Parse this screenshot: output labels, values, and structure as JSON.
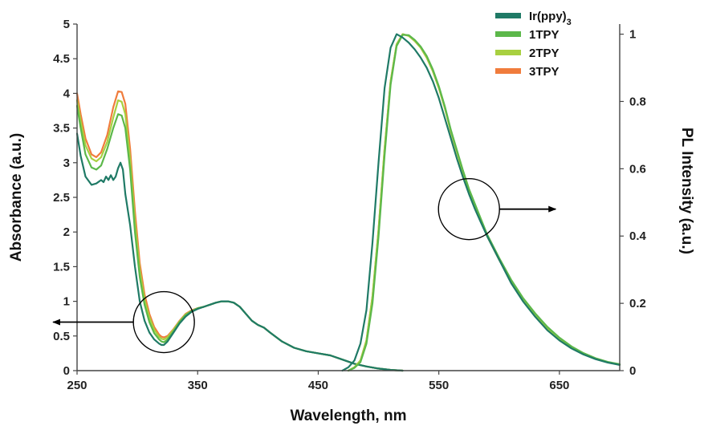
{
  "chart_data": {
    "type": "line",
    "xlabel": "Wavelength, nm",
    "ylabel_left": "Absorbance (a.u.)",
    "ylabel_right": "PL Intensity (a.u.)",
    "xlim": [
      250,
      700
    ],
    "ylim_left": [
      0,
      5
    ],
    "ylim_right": [
      0,
      1.03
    ],
    "x_ticks": [
      250,
      350,
      450,
      550,
      650
    ],
    "y_left_ticks": [
      0,
      0.5,
      1,
      1.5,
      2,
      2.5,
      3,
      3.5,
      4,
      4.5,
      5
    ],
    "y_right_ticks": [
      0,
      0.2,
      0.4,
      0.6,
      0.8,
      1
    ],
    "grid": false,
    "legend_position": "top-right",
    "legend": [
      {
        "base": "Ir(ppy)",
        "sub": "3",
        "color": "#1f7a66"
      },
      {
        "base": "1TPY",
        "sub": "",
        "color": "#5cb84a"
      },
      {
        "base": "2TPY",
        "sub": "",
        "color": "#a8d040"
      },
      {
        "base": "3TPY",
        "sub": "",
        "color": "#f07c3c"
      }
    ],
    "annotations": [
      {
        "type": "circle-arrow",
        "direction": "left",
        "center": [
          322,
          0.7
        ]
      },
      {
        "type": "circle-arrow",
        "direction": "right",
        "center": [
          575,
          0.48
        ]
      }
    ],
    "series": [
      {
        "axis": "left",
        "color": "#f07c3c",
        "x": [
          250,
          253,
          257,
          262,
          266,
          270,
          275,
          280,
          284,
          287,
          290,
          294,
          298,
          302,
          306,
          310,
          314,
          318,
          320,
          322,
          325,
          330,
          335,
          340,
          345,
          350,
          355,
          360,
          365,
          370,
          375,
          380,
          385,
          390,
          395,
          400,
          405,
          410,
          420,
          430,
          440,
          450,
          460,
          470,
          480,
          490,
          500,
          510,
          520
        ],
        "y": [
          4.0,
          3.7,
          3.35,
          3.12,
          3.08,
          3.15,
          3.4,
          3.8,
          4.03,
          4.02,
          3.85,
          3.2,
          2.3,
          1.55,
          1.1,
          0.82,
          0.63,
          0.52,
          0.49,
          0.48,
          0.5,
          0.6,
          0.72,
          0.82,
          0.87,
          0.9,
          0.92,
          0.95,
          0.98,
          1.0,
          1.0,
          0.98,
          0.92,
          0.82,
          0.72,
          0.66,
          0.62,
          0.55,
          0.42,
          0.33,
          0.28,
          0.25,
          0.22,
          0.16,
          0.1,
          0.06,
          0.03,
          0.01,
          0.0
        ]
      },
      {
        "axis": "left",
        "color": "#a8d040",
        "x": [
          250,
          253,
          257,
          262,
          266,
          270,
          275,
          280,
          284,
          287,
          290,
          294,
          298,
          302,
          306,
          310,
          314,
          318,
          320,
          322,
          325,
          330,
          335,
          340,
          345,
          350,
          355,
          360,
          365,
          370,
          375,
          380,
          385,
          390,
          395,
          400,
          405,
          410,
          420,
          430,
          440,
          450,
          460,
          470,
          480,
          490,
          500,
          510,
          520
        ],
        "y": [
          3.9,
          3.6,
          3.25,
          3.06,
          3.02,
          3.08,
          3.3,
          3.65,
          3.9,
          3.88,
          3.7,
          3.05,
          2.15,
          1.45,
          1.02,
          0.77,
          0.59,
          0.49,
          0.46,
          0.45,
          0.48,
          0.59,
          0.71,
          0.81,
          0.86,
          0.9,
          0.92,
          0.95,
          0.98,
          1.0,
          1.0,
          0.98,
          0.92,
          0.82,
          0.72,
          0.66,
          0.62,
          0.55,
          0.42,
          0.33,
          0.28,
          0.25,
          0.22,
          0.16,
          0.1,
          0.06,
          0.03,
          0.01,
          0.0
        ]
      },
      {
        "axis": "left",
        "color": "#5cb84a",
        "x": [
          250,
          253,
          257,
          262,
          266,
          270,
          275,
          280,
          284,
          287,
          290,
          294,
          298,
          302,
          306,
          310,
          314,
          318,
          320,
          322,
          325,
          330,
          335,
          340,
          345,
          350,
          355,
          360,
          365,
          370,
          375,
          380,
          385,
          390,
          395,
          400,
          405,
          410,
          420,
          430,
          440,
          450,
          460,
          470,
          480,
          490,
          500,
          510,
          520
        ],
        "y": [
          3.82,
          3.5,
          3.12,
          2.93,
          2.9,
          2.96,
          3.2,
          3.5,
          3.7,
          3.68,
          3.5,
          2.9,
          2.0,
          1.35,
          0.95,
          0.7,
          0.54,
          0.45,
          0.42,
          0.41,
          0.45,
          0.57,
          0.7,
          0.8,
          0.86,
          0.9,
          0.92,
          0.95,
          0.98,
          1.0,
          1.0,
          0.98,
          0.92,
          0.82,
          0.72,
          0.66,
          0.62,
          0.55,
          0.42,
          0.33,
          0.28,
          0.25,
          0.22,
          0.16,
          0.1,
          0.06,
          0.03,
          0.01,
          0.0
        ]
      },
      {
        "axis": "left",
        "color": "#1f7a66",
        "x": [
          250,
          253,
          257,
          262,
          266,
          270,
          272,
          274,
          276,
          278,
          280,
          282,
          284,
          286,
          288,
          290,
          294,
          298,
          302,
          306,
          310,
          314,
          318,
          320,
          322,
          325,
          330,
          335,
          340,
          345,
          350,
          355,
          360,
          365,
          370,
          375,
          380,
          385,
          390,
          395,
          400,
          405,
          410,
          420,
          430,
          440,
          450,
          460,
          470,
          480,
          490,
          500,
          510,
          520
        ],
        "y": [
          3.42,
          3.1,
          2.8,
          2.68,
          2.7,
          2.75,
          2.72,
          2.8,
          2.75,
          2.82,
          2.75,
          2.8,
          2.92,
          3.0,
          2.9,
          2.55,
          2.1,
          1.5,
          1.0,
          0.72,
          0.55,
          0.45,
          0.39,
          0.37,
          0.37,
          0.42,
          0.55,
          0.68,
          0.78,
          0.85,
          0.89,
          0.92,
          0.95,
          0.98,
          1.0,
          1.0,
          0.98,
          0.92,
          0.82,
          0.72,
          0.66,
          0.62,
          0.55,
          0.42,
          0.33,
          0.28,
          0.25,
          0.22,
          0.16,
          0.1,
          0.06,
          0.03,
          0.01,
          0.0
        ]
      },
      {
        "axis": "right",
        "color": "#f07c3c",
        "x": [
          475,
          480,
          485,
          490,
          495,
          500,
          505,
          510,
          515,
          520,
          525,
          530,
          535,
          540,
          545,
          550,
          555,
          560,
          565,
          570,
          575,
          580,
          585,
          590,
          600,
          610,
          620,
          630,
          640,
          650,
          660,
          670,
          680,
          690,
          700
        ],
        "y": [
          0.0,
          0.01,
          0.03,
          0.09,
          0.22,
          0.42,
          0.66,
          0.86,
          0.97,
          1.0,
          0.995,
          0.98,
          0.96,
          0.93,
          0.89,
          0.84,
          0.78,
          0.71,
          0.65,
          0.59,
          0.535,
          0.49,
          0.445,
          0.4,
          0.33,
          0.265,
          0.21,
          0.165,
          0.125,
          0.095,
          0.07,
          0.05,
          0.035,
          0.025,
          0.018
        ]
      },
      {
        "axis": "right",
        "color": "#a8d040",
        "x": [
          475,
          480,
          485,
          490,
          495,
          500,
          505,
          510,
          515,
          520,
          525,
          530,
          535,
          540,
          545,
          550,
          555,
          560,
          565,
          570,
          575,
          580,
          585,
          590,
          600,
          610,
          620,
          630,
          640,
          650,
          660,
          670,
          680,
          690,
          700
        ],
        "y": [
          0.0,
          0.01,
          0.03,
          0.09,
          0.22,
          0.42,
          0.66,
          0.86,
          0.97,
          1.0,
          0.995,
          0.98,
          0.96,
          0.93,
          0.89,
          0.84,
          0.78,
          0.71,
          0.65,
          0.59,
          0.535,
          0.49,
          0.445,
          0.4,
          0.33,
          0.265,
          0.21,
          0.165,
          0.125,
          0.095,
          0.07,
          0.05,
          0.035,
          0.025,
          0.018
        ]
      },
      {
        "axis": "right",
        "color": "#5cb84a",
        "x": [
          475,
          480,
          485,
          490,
          495,
          500,
          505,
          510,
          515,
          520,
          525,
          530,
          535,
          540,
          545,
          550,
          555,
          560,
          565,
          570,
          575,
          580,
          585,
          590,
          600,
          610,
          620,
          630,
          640,
          650,
          660,
          670,
          680,
          690,
          700
        ],
        "y": [
          0.0,
          0.008,
          0.025,
          0.08,
          0.2,
          0.4,
          0.64,
          0.85,
          0.965,
          0.998,
          0.997,
          0.983,
          0.963,
          0.935,
          0.895,
          0.845,
          0.785,
          0.715,
          0.655,
          0.595,
          0.54,
          0.495,
          0.45,
          0.405,
          0.335,
          0.27,
          0.215,
          0.17,
          0.13,
          0.098,
          0.072,
          0.052,
          0.037,
          0.026,
          0.019
        ]
      },
      {
        "axis": "right",
        "color": "#1f7a66",
        "x": [
          470,
          475,
          480,
          485,
          490,
          495,
          500,
          505,
          510,
          515,
          520,
          525,
          530,
          535,
          540,
          545,
          550,
          555,
          560,
          565,
          570,
          575,
          580,
          585,
          590,
          600,
          610,
          620,
          630,
          640,
          650,
          660,
          670,
          680,
          690,
          700
        ],
        "y": [
          0.0,
          0.01,
          0.03,
          0.08,
          0.18,
          0.38,
          0.62,
          0.84,
          0.96,
          1.0,
          0.99,
          0.975,
          0.955,
          0.93,
          0.9,
          0.86,
          0.81,
          0.75,
          0.69,
          0.63,
          0.575,
          0.525,
          0.48,
          0.44,
          0.4,
          0.33,
          0.26,
          0.205,
          0.16,
          0.12,
          0.09,
          0.066,
          0.048,
          0.034,
          0.024,
          0.017
        ]
      }
    ]
  }
}
